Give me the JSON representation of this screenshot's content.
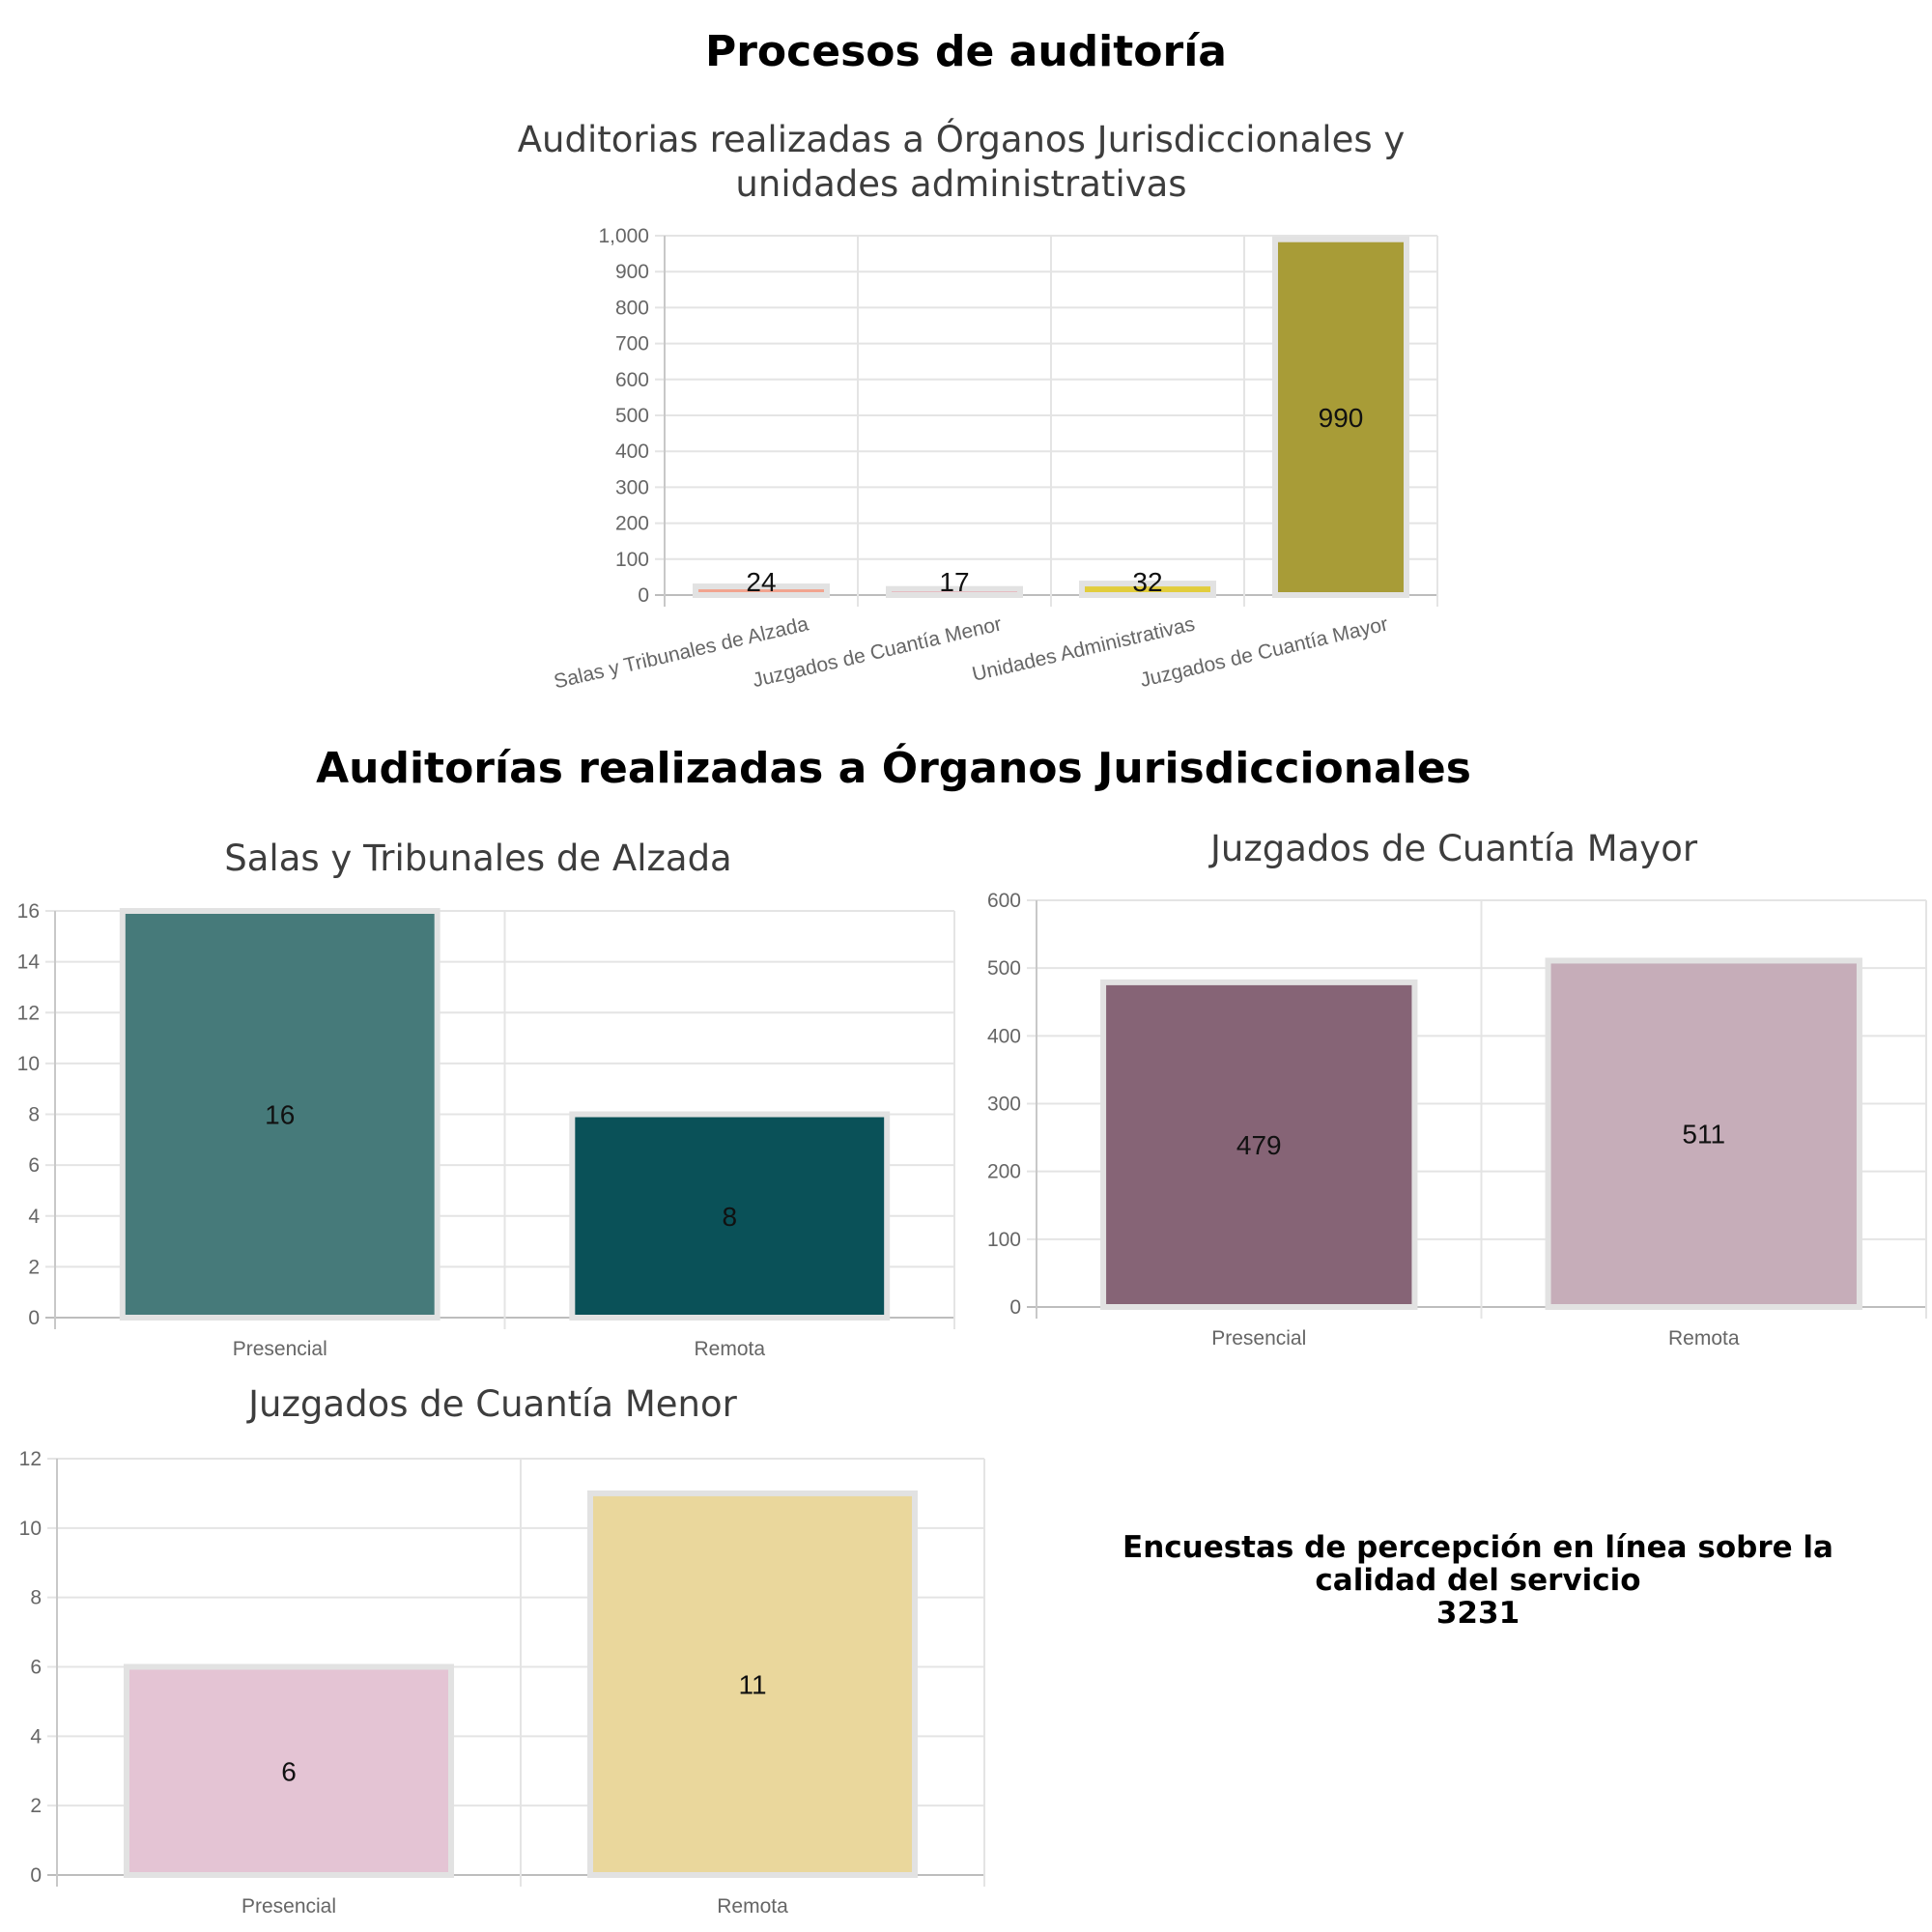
{
  "headings": {
    "main": "Procesos de auditoría",
    "sub": "Auditorías realizadas a Órganos Jurisdiccionales"
  },
  "survey": {
    "label_line1": "Encuestas de percepción en línea sobre la",
    "label_line2": "calidad del servicio",
    "value": "3231"
  },
  "chart_data": [
    {
      "id": "overview",
      "type": "bar",
      "title_line1": "Auditorias realizadas a Órganos Jurisdiccionales y",
      "title_line2": "unidades administrativas",
      "categories": [
        "Salas y Tribunales de Alzada",
        "Juzgados de Cuantía Menor",
        "Unidades Administrativas",
        "Juzgados de Cuantía Mayor"
      ],
      "values": [
        24,
        17,
        32,
        990
      ],
      "colors": [
        "#f2a38e",
        "#ec6b7d",
        "#e2cd3c",
        "#a89c37"
      ],
      "ylim": [
        0,
        1000
      ],
      "yticks": [
        0,
        100,
        200,
        300,
        400,
        500,
        600,
        700,
        800,
        900,
        1000
      ],
      "ytick_labels": [
        "0",
        "100",
        "200",
        "300",
        "400",
        "500",
        "600",
        "700",
        "800",
        "900",
        "1,000"
      ],
      "grid": true,
      "xlabel": "",
      "ylabel": ""
    },
    {
      "id": "alzada",
      "type": "bar",
      "title": "Salas y Tribunales de Alzada",
      "categories": [
        "Presencial",
        "Remota"
      ],
      "values": [
        16,
        8
      ],
      "colors": [
        "#467a7a",
        "#0a5158"
      ],
      "ylim": [
        0,
        16
      ],
      "yticks": [
        0,
        2,
        4,
        6,
        8,
        10,
        12,
        14,
        16
      ],
      "ytick_labels": [
        "0",
        "2",
        "4",
        "6",
        "8",
        "10",
        "12",
        "14",
        "16"
      ],
      "grid": true,
      "xlabel": "",
      "ylabel": ""
    },
    {
      "id": "mayor",
      "type": "bar",
      "title": "Juzgados de Cuantía Mayor",
      "categories": [
        "Presencial",
        "Remota"
      ],
      "values": [
        479,
        511
      ],
      "colors": [
        "#866476",
        "#c6adb9"
      ],
      "ylim": [
        0,
        600
      ],
      "yticks": [
        0,
        100,
        200,
        300,
        400,
        500,
        600
      ],
      "ytick_labels": [
        "0",
        "100",
        "200",
        "300",
        "400",
        "500",
        "600"
      ],
      "grid": true,
      "xlabel": "",
      "ylabel": ""
    },
    {
      "id": "menor",
      "type": "bar",
      "title": "Juzgados de Cuantía Menor",
      "categories": [
        "Presencial",
        "Remota"
      ],
      "values": [
        6,
        11
      ],
      "colors": [
        "#e4c4d4",
        "#ead79c"
      ],
      "ylim": [
        0,
        12
      ],
      "yticks": [
        0,
        2,
        4,
        6,
        8,
        10,
        12
      ],
      "ytick_labels": [
        "0",
        "2",
        "4",
        "6",
        "8",
        "10",
        "12"
      ],
      "grid": true,
      "xlabel": "",
      "ylabel": ""
    }
  ]
}
